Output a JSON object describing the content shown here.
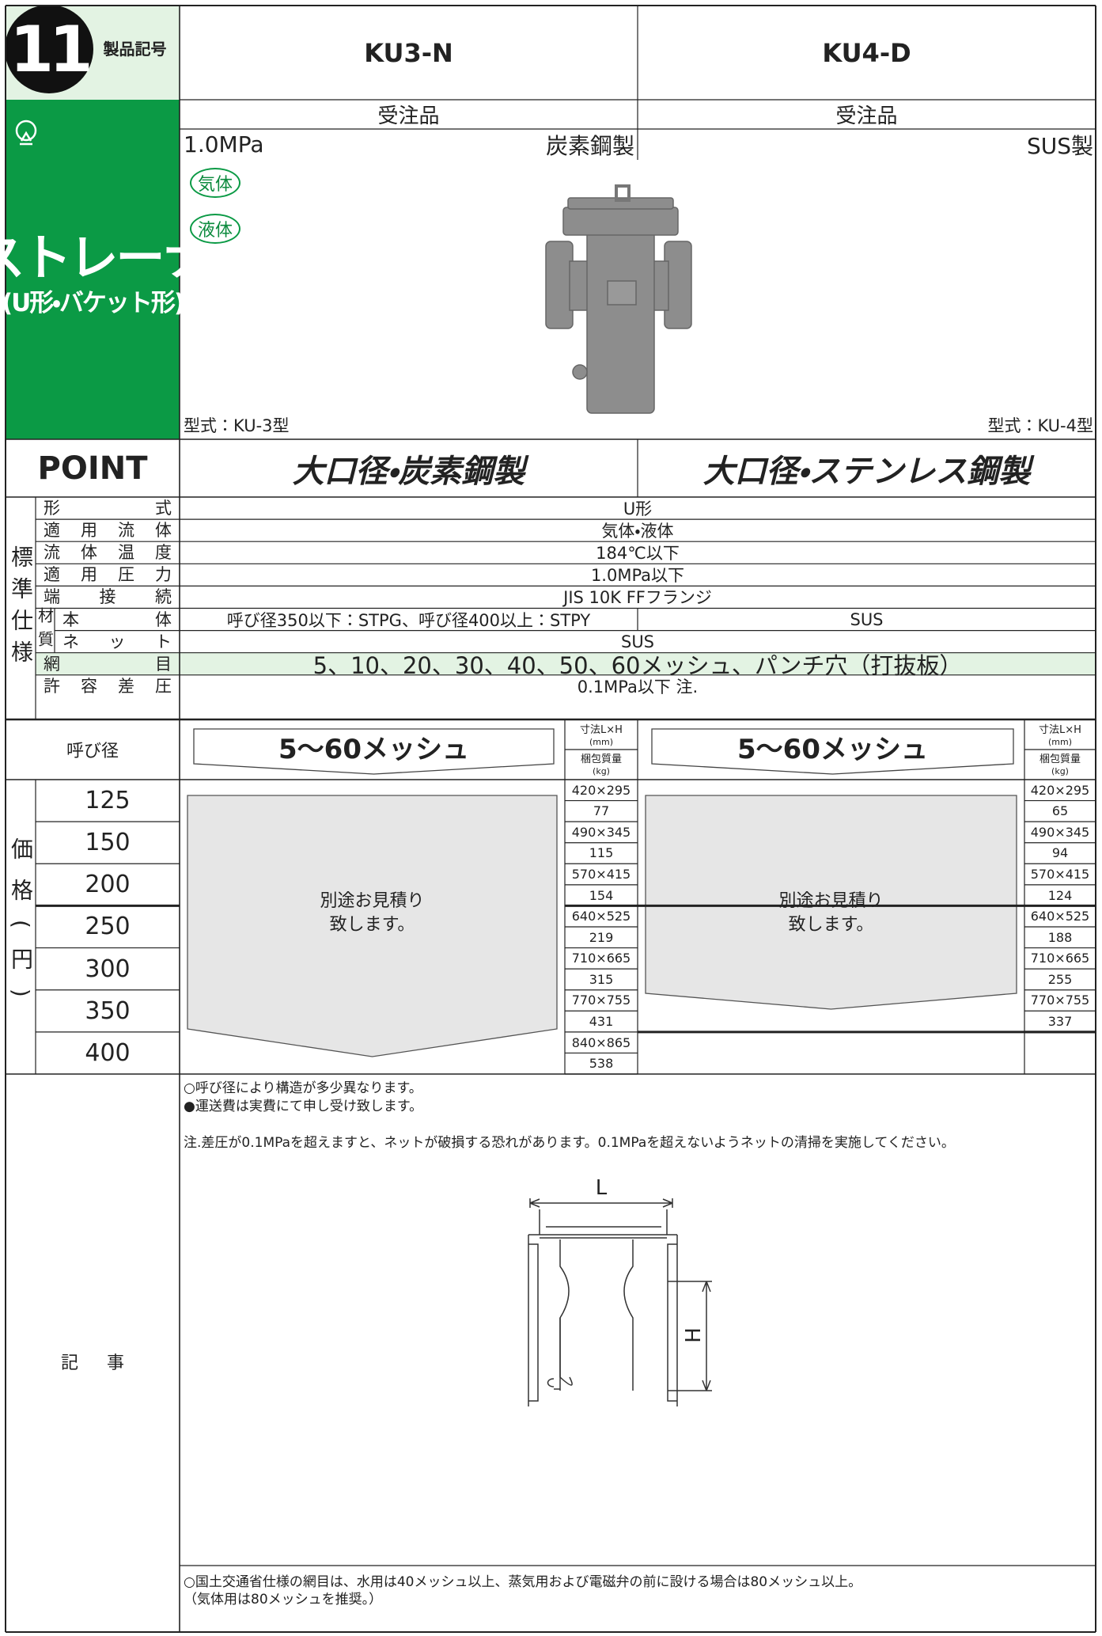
{
  "header": {
    "number": "11",
    "label": "製品記号",
    "products": [
      "KU3-N",
      "KU4-D"
    ]
  },
  "side": {
    "title": "ストレーナ",
    "subtitle": "(U形・バケット形)"
  },
  "order": [
    "受注品",
    "受注品"
  ],
  "pressure": "1.0MPa",
  "materials": [
    "炭素鋼製",
    "SUS製"
  ],
  "fluids": [
    "気体",
    "液体"
  ],
  "models": [
    "型式：KU-3型",
    "型式：KU-4型"
  ],
  "point": {
    "label": "POINT",
    "items": [
      "大口径・炭素鋼製",
      "大口径・ステンレス鋼製"
    ]
  },
  "spec": {
    "group": "標準仕様",
    "material_label": "材質",
    "rows": [
      {
        "label": "形式",
        "value": "U形"
      },
      {
        "label": "適用流体",
        "value": "気体・液体"
      },
      {
        "label": "流体温度",
        "value": "184℃以下"
      },
      {
        "label": "適用圧力",
        "value": "1.0MPa以下"
      },
      {
        "label": "端接続",
        "value": "JIS 10K FFフランジ"
      },
      {
        "label": "本体",
        "values": [
          "呼び径350以下：STPG、呼び径400以上：STPY",
          "SUS"
        ]
      },
      {
        "label": "ネット",
        "value": "SUS"
      },
      {
        "label": "網目",
        "value": "5、10、20、30、40、50、60メッシュ、パンチ穴（打抜板）"
      },
      {
        "label": "許容差圧",
        "value": "0.1MPa以下 注."
      }
    ]
  },
  "price": {
    "label": "呼び径",
    "group": "価格(円)",
    "mesh": [
      "5〜60メッシュ",
      "5〜60メッシュ"
    ],
    "dims_header": "寸法L×H",
    "dims_unit": "(mm)",
    "weight_header": "梱包質量",
    "weight_unit": "(kg)",
    "quote": [
      "別途お見積り",
      "致します。"
    ],
    "sizes": [
      125,
      150,
      200,
      250,
      300,
      350,
      400
    ],
    "products": [
      {
        "dims": [
          "420×295",
          "490×345",
          "570×415",
          "640×525",
          "710×665",
          "770×755",
          "840×865"
        ],
        "weights": [
          77,
          115,
          154,
          219,
          315,
          431,
          538
        ]
      },
      {
        "dims": [
          "420×295",
          "490×345",
          "570×415",
          "640×525",
          "710×665",
          "770×755"
        ],
        "weights": [
          65,
          94,
          124,
          188,
          255,
          337
        ]
      }
    ]
  },
  "notes": {
    "label": "記事",
    "lines": [
      "○呼び径により構造が多少異なります。",
      "●運送費は実費にて申し受け致します。",
      "注.差圧が0.1MPaを超えますと、ネットが破損する恐れがあります。0.1MPaを超えないようネットの清掃を実施してください。"
    ],
    "diagram": {
      "l": "L",
      "h": "H"
    },
    "footer": [
      "○国土交通省仕様の網目は、水用は40メッシュ以上、蒸気用および電磁弁の前に設ける場合は80メッシュ以上。",
      "（気体用は80メッシュを推奨。）"
    ]
  }
}
